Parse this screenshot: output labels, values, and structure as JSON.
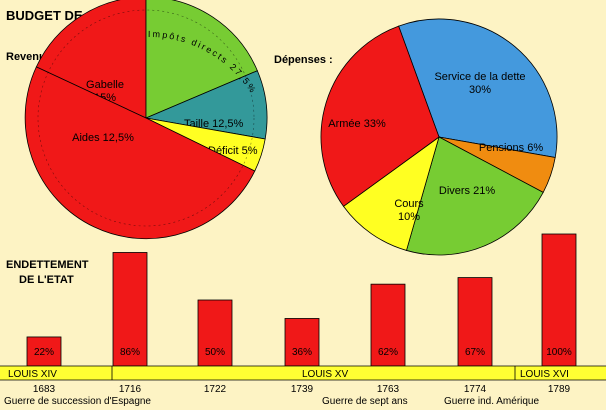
{
  "title": "BUDGET DE 1774",
  "colors": {
    "background": "#fdf3c4",
    "red": "#f01818",
    "green": "#77cc33",
    "teal": "#33999a",
    "yellow": "#ffff22",
    "blue": "#4499dd",
    "orange": "#f08c10",
    "timeline": "#ffff33"
  },
  "chart_data": [
    {
      "type": "pie",
      "title": "Revenus :",
      "arc_text": "Impôts directs 27,5%",
      "slices": [
        {
          "label": "Gabelle",
          "value_label": "15%",
          "value": 15,
          "color": "#f01818"
        },
        {
          "label": "Impôts directs",
          "value_label": "27,5%",
          "value": 27.5,
          "color": "#77cc33"
        },
        {
          "label": "Taille",
          "value_label": "12,5%",
          "value": 12.5,
          "color": "#33999a"
        },
        {
          "label": "Déficit",
          "value_label": "5%",
          "value": 5,
          "color": "#ffff22"
        },
        {
          "label": "Aides",
          "value_label": "12,5%",
          "value": 12.5,
          "color": "#f01818"
        }
      ]
    },
    {
      "type": "pie",
      "title": "Dépenses :",
      "slices": [
        {
          "label": "Service de la dette",
          "value_label": "30%",
          "value": 30,
          "color": "#4499dd"
        },
        {
          "label": "Pensions",
          "value_label": "6%",
          "value": 6,
          "color": "#f08c10"
        },
        {
          "label": "Divers",
          "value_label": "21%",
          "value": 21,
          "color": "#77cc33"
        },
        {
          "label": "Cours",
          "value_label": "10%",
          "value": 10,
          "color": "#ffff22"
        },
        {
          "label": "Armée",
          "value_label": "33%",
          "value": 33,
          "color": "#f01818"
        }
      ]
    },
    {
      "type": "bar",
      "title": "ENDETTEMENT DE L'ETAT",
      "title_lines": [
        "ENDETTEMENT",
        "DE L'ETAT"
      ],
      "categories": [
        "1683",
        "1716",
        "1722",
        "1739",
        "1763",
        "1774",
        "1789"
      ],
      "values": [
        22,
        86,
        50,
        36,
        62,
        67,
        100
      ],
      "value_labels": [
        "22%",
        "86%",
        "50%",
        "36%",
        "62%",
        "67%",
        "100%"
      ],
      "ylim": [
        0,
        100
      ],
      "reigns": [
        "LOUIS XIV",
        "LOUIS XV",
        "LOUIS XVI"
      ],
      "events": [
        "Guerre de succession d'Espagne",
        "Guerre de sept ans",
        "Guerre ind. Amérique"
      ]
    }
  ]
}
